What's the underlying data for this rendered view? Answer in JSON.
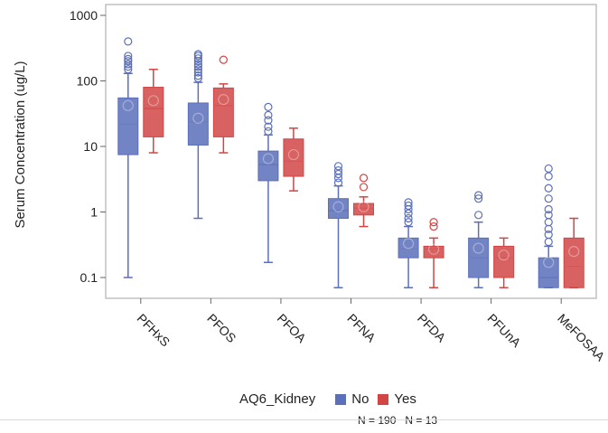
{
  "chart_data": {
    "type": "boxplot",
    "ylabel": "Serum Concentration (ug/L)",
    "yscale": "log",
    "ylim": [
      0.05,
      1400
    ],
    "yticks": [
      0.1,
      1,
      10,
      100,
      1000
    ],
    "ytick_labels": [
      "0.1",
      "1",
      "10",
      "100",
      "1000"
    ],
    "categories": [
      "PFHxS",
      "PFOS",
      "PFOA",
      "PFNA",
      "PFDA",
      "PFUnA",
      "MeFOSAA"
    ],
    "legend": {
      "title": "AQ6_Kidney",
      "placement": "bottom",
      "entries": [
        {
          "label": "No",
          "count": "N = 190",
          "color": "#5b6fba"
        },
        {
          "label": "Yes",
          "count": "N = 13",
          "color": "#d14545"
        }
      ]
    },
    "series": [
      {
        "name": "No",
        "color": "#5b6fba",
        "boxes": [
          {
            "whislo": 0.1,
            "q1": 7.5,
            "med": 22,
            "q3": 55,
            "whishi": 130,
            "mean": 42,
            "fliers": [
              150,
              165,
              180,
              200,
              215,
              240,
              400
            ]
          },
          {
            "whislo": 0.8,
            "q1": 10.5,
            "med": 23,
            "q3": 46,
            "whishi": 95,
            "mean": 27,
            "fliers": [
              110,
              120,
              135,
              150,
              165,
              180,
              200,
              220,
              240,
              255
            ]
          },
          {
            "whislo": 0.17,
            "q1": 3.0,
            "med": 5.3,
            "q3": 8.5,
            "whishi": 15,
            "mean": 6.5,
            "fliers": [
              17,
              20,
              25,
              30,
              40
            ]
          },
          {
            "whislo": 0.07,
            "q1": 0.8,
            "med": 1.05,
            "q3": 1.6,
            "whishi": 2.5,
            "mean": 1.2,
            "fliers": [
              2.8,
              3.3,
              3.8,
              4.3,
              5.0
            ]
          },
          {
            "whislo": 0.07,
            "q1": 0.2,
            "med": 0.27,
            "q3": 0.4,
            "whishi": 0.6,
            "mean": 0.33,
            "fliers": [
              0.7,
              0.8,
              0.95,
              1.1,
              1.25,
              1.4
            ]
          },
          {
            "whislo": 0.07,
            "q1": 0.1,
            "med": 0.2,
            "q3": 0.4,
            "whishi": 0.7,
            "mean": 0.28,
            "fliers": [
              0.9,
              1.6,
              1.8
            ]
          },
          {
            "whislo": 0.07,
            "q1": 0.07,
            "med": 0.1,
            "q3": 0.2,
            "whishi": 0.3,
            "mean": 0.17,
            "fliers": [
              0.35,
              0.45,
              0.55,
              0.7,
              0.9,
              1.1,
              1.6,
              2.3,
              3.5,
              4.6
            ]
          }
        ]
      },
      {
        "name": "Yes",
        "color": "#d14545",
        "boxes": [
          {
            "whislo": 8,
            "q1": 14,
            "med": 38,
            "q3": 80,
            "whishi": 150,
            "mean": 50,
            "fliers": []
          },
          {
            "whislo": 8,
            "q1": 14,
            "med": 42,
            "q3": 78,
            "whishi": 90,
            "mean": 52,
            "fliers": [
              210
            ]
          },
          {
            "whislo": 2.1,
            "q1": 3.5,
            "med": 6,
            "q3": 13,
            "whishi": 19,
            "mean": 7.5,
            "fliers": []
          },
          {
            "whislo": 0.6,
            "q1": 0.9,
            "med": 1.15,
            "q3": 1.35,
            "whishi": 1.7,
            "mean": 1.2,
            "fliers": [
              2.4,
              3.3
            ]
          },
          {
            "whislo": 0.07,
            "q1": 0.2,
            "med": 0.27,
            "q3": 0.3,
            "whishi": 0.4,
            "mean": 0.27,
            "fliers": [
              0.6,
              0.7
            ]
          },
          {
            "whislo": 0.07,
            "q1": 0.1,
            "med": 0.2,
            "q3": 0.3,
            "whishi": 0.4,
            "mean": 0.22,
            "fliers": []
          },
          {
            "whislo": 0.07,
            "q1": 0.07,
            "med": 0.15,
            "q3": 0.4,
            "whishi": 0.8,
            "mean": 0.25,
            "fliers": []
          }
        ]
      }
    ]
  }
}
